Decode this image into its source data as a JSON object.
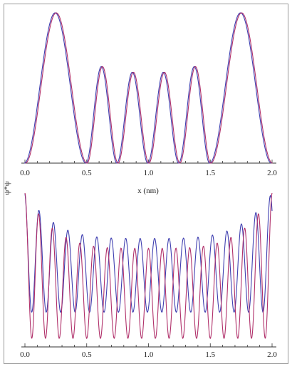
{
  "chart_data": [
    {
      "type": "line",
      "panel": "top",
      "xlabel": "x (nm)",
      "ylabel": "ψ*ψ",
      "xlim": [
        0.0,
        2.0
      ],
      "xticks": [
        "0.0",
        "0.5",
        "1.0",
        "1.5",
        "2.0"
      ],
      "grid": false,
      "colors": [
        "#3f3fb0",
        "#b0306a"
      ],
      "peaks_x": [
        0.31,
        0.63,
        0.87,
        1.13,
        1.37,
        1.69
      ],
      "peaks_relative_height": [
        1.0,
        0.67,
        0.6,
        0.6,
        0.67,
        1.0
      ],
      "zeros_x": [
        0.0,
        0.5,
        0.75,
        1.0,
        1.25,
        1.5,
        2.0
      ]
    },
    {
      "type": "line",
      "panel": "bottom",
      "xlim": [
        0.0,
        2.0
      ],
      "xticks": [
        "0.0",
        "0.5",
        "1.0",
        "1.5",
        "2.0"
      ],
      "grid": false,
      "colors": [
        "#3f3fb0",
        "#b0306a"
      ]
    }
  ]
}
